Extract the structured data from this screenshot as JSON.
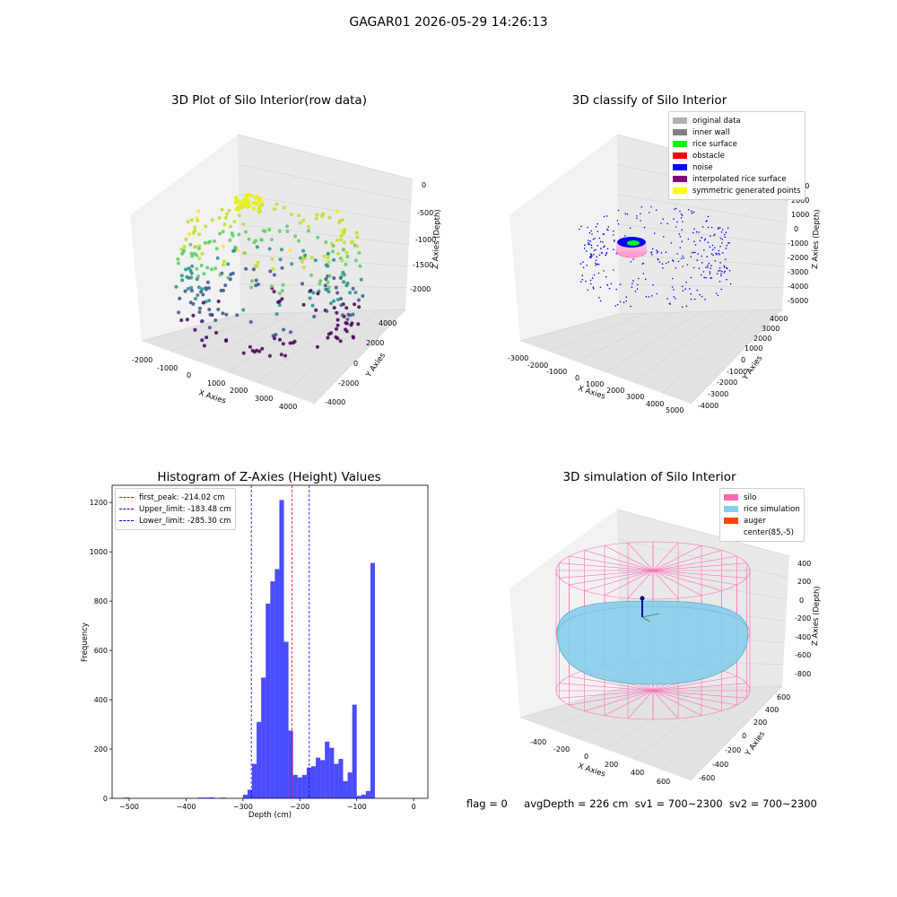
{
  "figure": {
    "suptitle": "GAGAR01 2026-05-29 14:26:13",
    "status": {
      "flag": "flag = 0",
      "avg_depth": "avgDepth = 226 cm",
      "sv1": "sv1 = 700~2300",
      "sv2": "sv2 = 700~2300"
    }
  },
  "panels": {
    "raw": {
      "title": "3D Plot of Silo Interior(row data)",
      "xlabel": "X Axies",
      "ylabel": "Y Axies",
      "zlabel": "Z Axies (Depth)",
      "xticks": [
        "-2000",
        "-1000",
        "0",
        "1000",
        "2000",
        "3000",
        "4000"
      ],
      "yticks": [
        "-4000",
        "-2000",
        "0",
        "2000",
        "4000"
      ],
      "zticks": [
        "-2000",
        "-1500",
        "-1000",
        "-500",
        "0"
      ]
    },
    "classify": {
      "title": "3D classify of Silo Interior",
      "xlabel": "X Axies",
      "ylabel": "Y Axies",
      "zlabel": "Z Axies (Depth)",
      "xticks": [
        "-3000",
        "-2000",
        "-1000",
        "0",
        "1000",
        "2000",
        "3000",
        "4000",
        "5000"
      ],
      "yticks": [
        "-4000",
        "-3000",
        "-2000",
        "-1000",
        "0",
        "1000",
        "2000",
        "3000",
        "4000"
      ],
      "zticks": [
        "-5000",
        "-4000",
        "-3000",
        "-2000",
        "-1000",
        "0",
        "1000",
        "2000",
        "3000"
      ],
      "legend": [
        {
          "label": "original data",
          "color": "#b0b0b0"
        },
        {
          "label": "inner wall",
          "color": "#808080"
        },
        {
          "label": "rice surface",
          "color": "#00ff00"
        },
        {
          "label": "obstacle",
          "color": "#ff0000"
        },
        {
          "label": "noise",
          "color": "#0000ff"
        },
        {
          "label": "interpolated rice surface",
          "color": "#800080"
        },
        {
          "label": "symmetric generated points",
          "color": "#ffff00"
        }
      ]
    },
    "simulation": {
      "title": "3D simulation of Silo Interior",
      "xlabel": "X Axies",
      "ylabel": "Y Axies",
      "zlabel": "Z Axies (Depth)",
      "xticks": [
        "-400",
        "-200",
        "0",
        "200",
        "400",
        "600"
      ],
      "yticks": [
        "-600",
        "-400",
        "-200",
        "0",
        "200",
        "400",
        "600"
      ],
      "zticks": [
        "-800",
        "-600",
        "-400",
        "-200",
        "0",
        "200",
        "400"
      ],
      "legend": [
        {
          "label": "silo",
          "color": "#ff69b4"
        },
        {
          "label": "rice simulation",
          "color": "#87ceeb"
        },
        {
          "label": "auger",
          "color": "#ff4500"
        },
        {
          "label": "center(85,-5)",
          "color": ""
        }
      ]
    }
  },
  "chart_data": {
    "type": "bar",
    "title": "Histogram of Z-Axies (Height) Values",
    "xlabel": "Depth (cm)",
    "ylabel": "Frequency",
    "xlim": [
      -530,
      25
    ],
    "ylim": [
      0,
      1270
    ],
    "xticks": [
      -500,
      -400,
      -300,
      -200,
      -100,
      0
    ],
    "yticks": [
      0,
      200,
      400,
      600,
      800,
      1000,
      1200
    ],
    "bar_color": "#0000ff",
    "bins": [
      {
        "x0": -510,
        "x1": -500,
        "count": 3
      },
      {
        "x0": -380,
        "x1": -370,
        "count": 3
      },
      {
        "x0": -370,
        "x1": -360,
        "count": 3
      },
      {
        "x0": -360,
        "x1": -350,
        "count": 4
      },
      {
        "x0": -340,
        "x1": -330,
        "count": 3
      },
      {
        "x0": -300,
        "x1": -292,
        "count": 15
      },
      {
        "x0": -292,
        "x1": -284,
        "count": 35
      },
      {
        "x0": -284,
        "x1": -276,
        "count": 140
      },
      {
        "x0": -276,
        "x1": -268,
        "count": 310
      },
      {
        "x0": -268,
        "x1": -260,
        "count": 490
      },
      {
        "x0": -260,
        "x1": -252,
        "count": 790
      },
      {
        "x0": -252,
        "x1": -244,
        "count": 880
      },
      {
        "x0": -244,
        "x1": -236,
        "count": 930
      },
      {
        "x0": -236,
        "x1": -228,
        "count": 1210
      },
      {
        "x0": -228,
        "x1": -220,
        "count": 635
      },
      {
        "x0": -220,
        "x1": -212,
        "count": 275
      },
      {
        "x0": -212,
        "x1": -204,
        "count": 95
      },
      {
        "x0": -204,
        "x1": -196,
        "count": 85
      },
      {
        "x0": -196,
        "x1": -188,
        "count": 95
      },
      {
        "x0": -188,
        "x1": -180,
        "count": 125
      },
      {
        "x0": -180,
        "x1": -172,
        "count": 130
      },
      {
        "x0": -172,
        "x1": -164,
        "count": 165
      },
      {
        "x0": -164,
        "x1": -156,
        "count": 155
      },
      {
        "x0": -156,
        "x1": -148,
        "count": 230
      },
      {
        "x0": -148,
        "x1": -140,
        "count": 205
      },
      {
        "x0": -140,
        "x1": -132,
        "count": 140
      },
      {
        "x0": -132,
        "x1": -124,
        "count": 160
      },
      {
        "x0": -124,
        "x1": -116,
        "count": 70
      },
      {
        "x0": -116,
        "x1": -108,
        "count": 105
      },
      {
        "x0": -108,
        "x1": -100,
        "count": 380
      },
      {
        "x0": -100,
        "x1": -92,
        "count": 10
      },
      {
        "x0": -92,
        "x1": -84,
        "count": 15
      },
      {
        "x0": -84,
        "x1": -76,
        "count": 30
      },
      {
        "x0": -76,
        "x1": -68,
        "count": 955
      }
    ],
    "vlines": [
      {
        "label": "first_peak: -214.02 cm",
        "x": -214.02,
        "color": "#ff0000"
      },
      {
        "label": "Upper_limit: -183.48 cm",
        "x": -183.48,
        "color": "#0000ff"
      },
      {
        "label": "Lower_limit: -285.30 cm",
        "x": -285.3,
        "color": "#0000ff"
      }
    ]
  }
}
